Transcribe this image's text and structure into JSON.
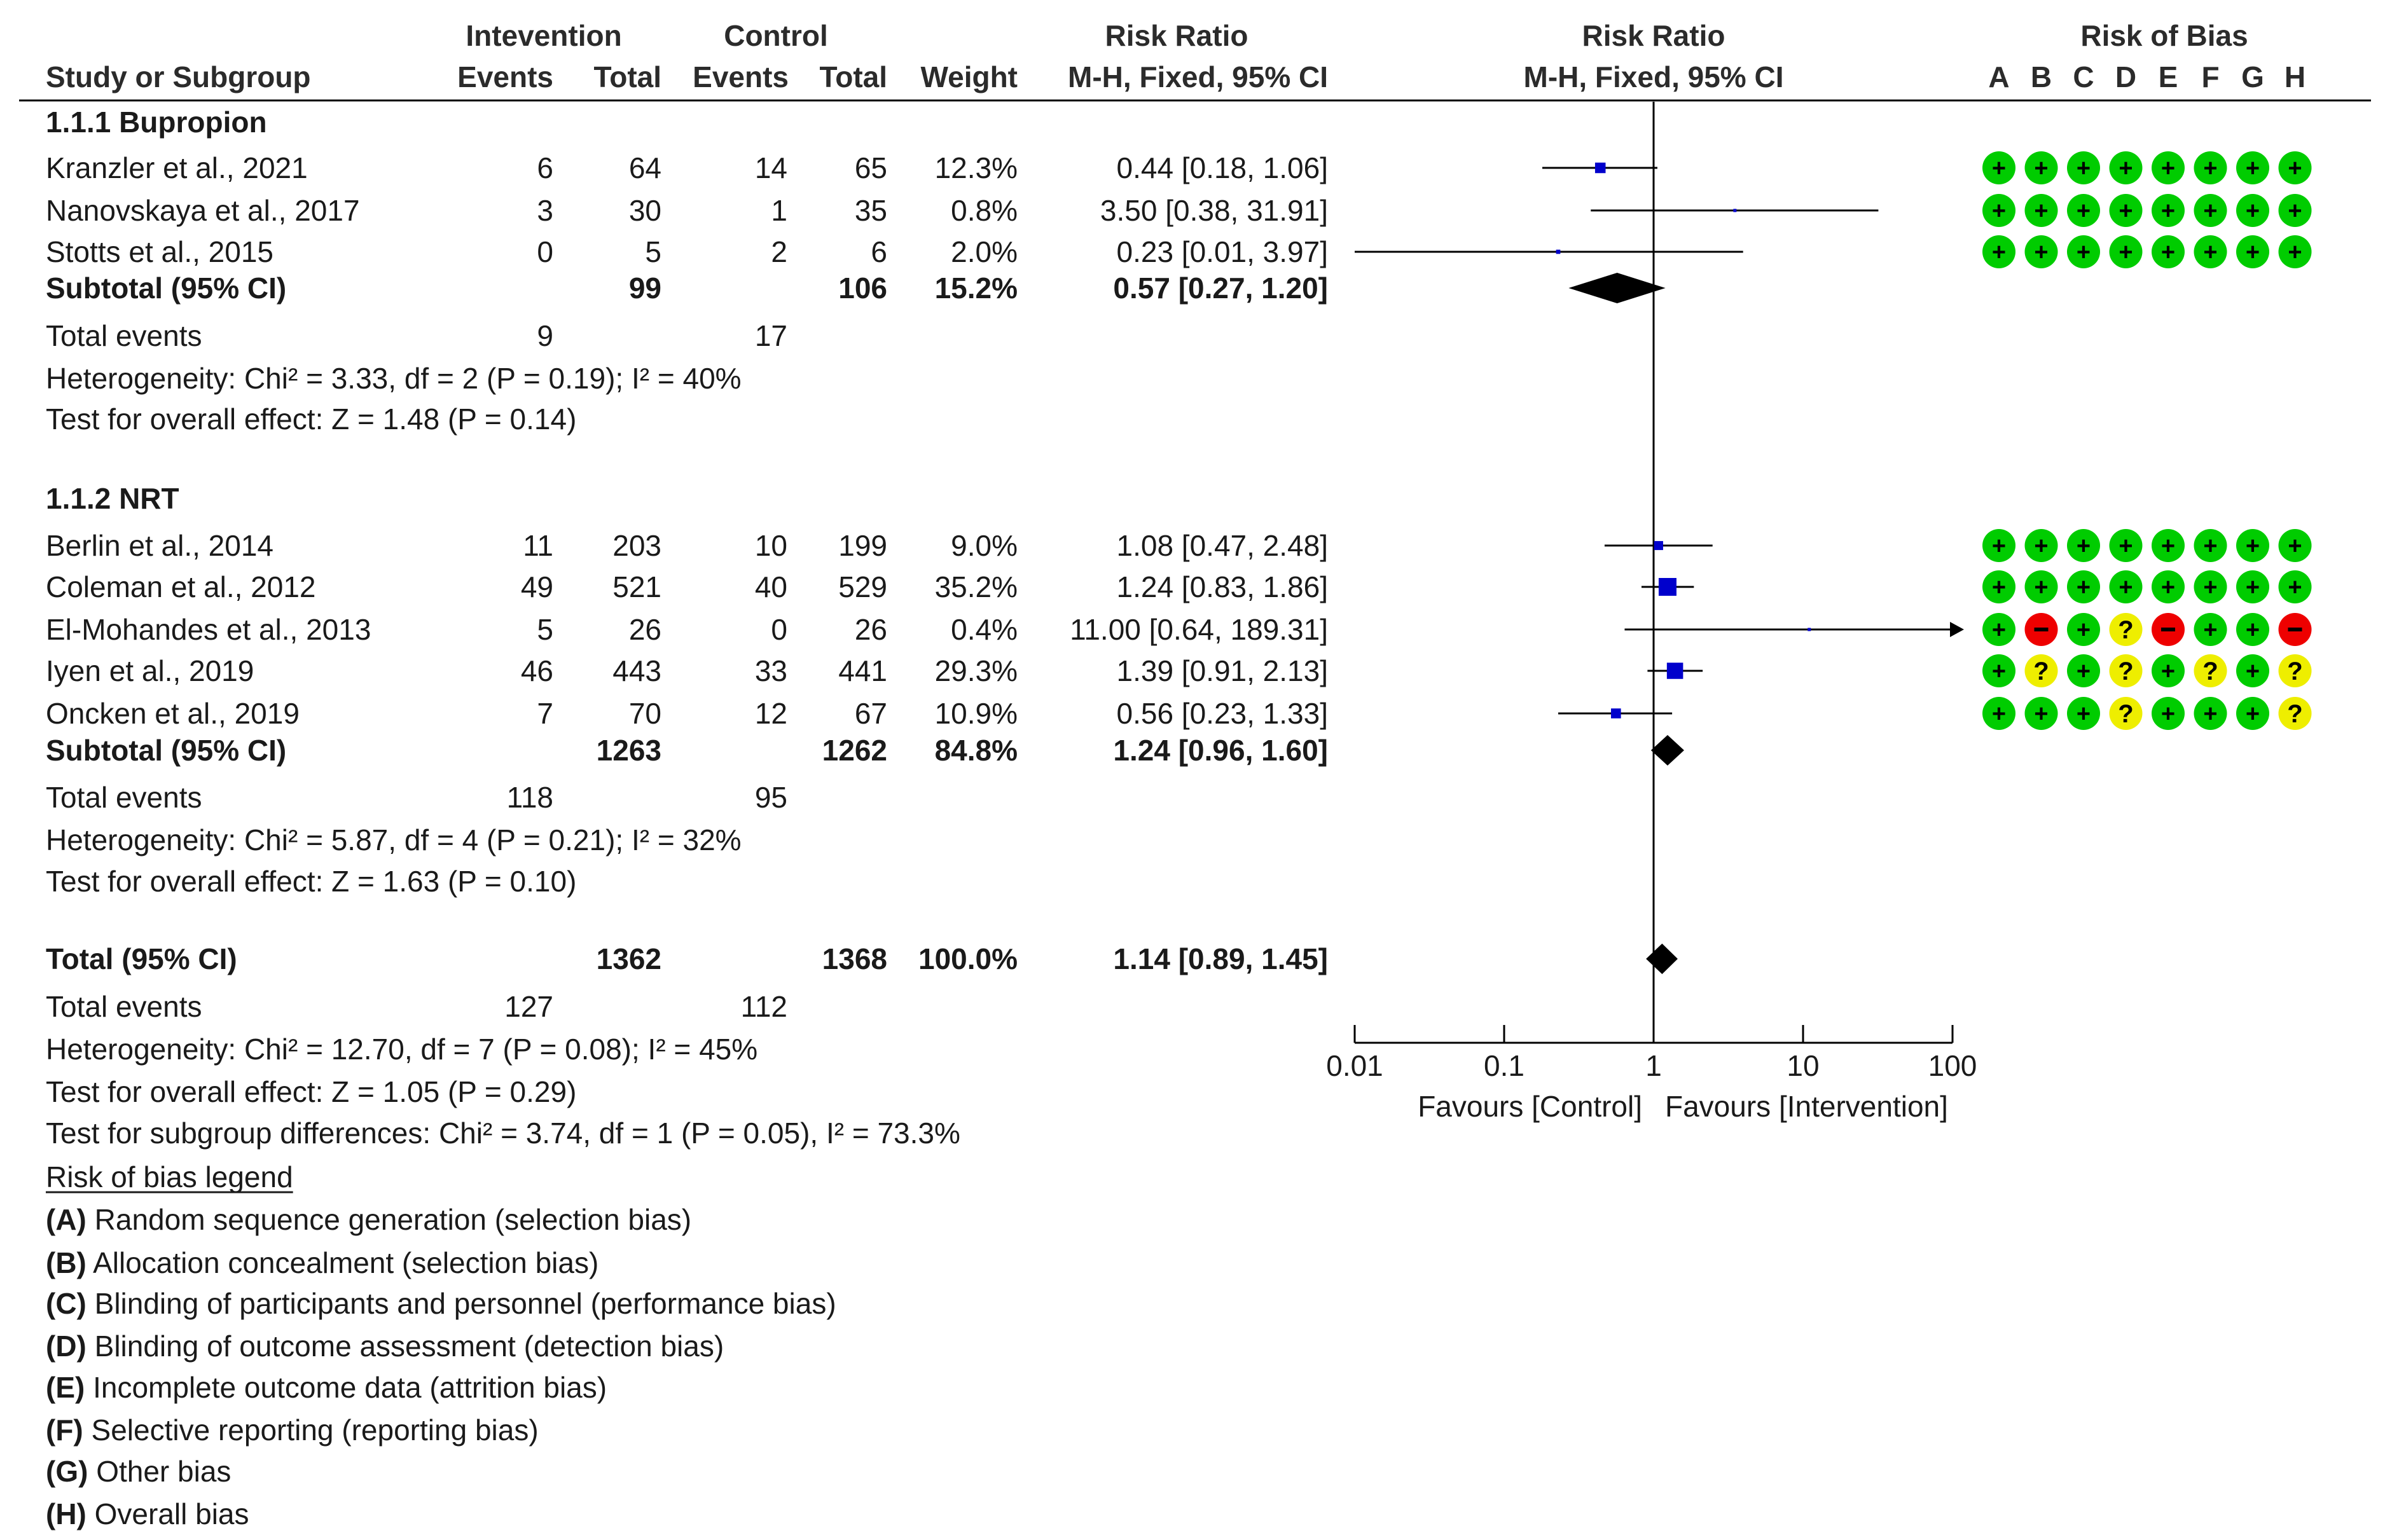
{
  "header": {
    "study_col": "Study or Subgroup",
    "intervention_group": "Intevention",
    "control_group": "Control",
    "events": "Events",
    "total": "Total",
    "weight": "Weight",
    "rr_title": "Risk Ratio",
    "rr_method": "M-H, Fixed, 95% CI",
    "plot_title": "Risk Ratio",
    "plot_method": "M-H, Fixed, 95% CI",
    "rob_title": "Risk of Bias",
    "rob_letters": [
      "A",
      "B",
      "C",
      "D",
      "E",
      "F",
      "G",
      "H"
    ]
  },
  "subgroups": [
    {
      "title": "1.1.1 Bupropion",
      "studies": [
        {
          "name": "Kranzler et al., 2021",
          "ie": "6",
          "it": "64",
          "ce": "14",
          "ct": "65",
          "weight": "12.3%",
          "rr_text": "0.44 [0.18, 1.06]",
          "rr": 0.44,
          "lo": 0.18,
          "hi": 1.06,
          "w": 12.3,
          "rob": [
            "+",
            "+",
            "+",
            "+",
            "+",
            "+",
            "+",
            "+"
          ]
        },
        {
          "name": "Nanovskaya et al., 2017",
          "ie": "3",
          "it": "30",
          "ce": "1",
          "ct": "35",
          "weight": "0.8%",
          "rr_text": "3.50 [0.38, 31.91]",
          "rr": 3.5,
          "lo": 0.38,
          "hi": 31.91,
          "w": 0.8,
          "rob": [
            "+",
            "+",
            "+",
            "+",
            "+",
            "+",
            "+",
            "+"
          ]
        },
        {
          "name": "Stotts et al., 2015",
          "ie": "0",
          "it": "5",
          "ce": "2",
          "ct": "6",
          "weight": "2.0%",
          "rr_text": "0.23 [0.01, 3.97]",
          "rr": 0.23,
          "lo": 0.01,
          "hi": 3.97,
          "w": 2.0,
          "rob": [
            "+",
            "+",
            "+",
            "+",
            "+",
            "+",
            "+",
            "+"
          ]
        }
      ],
      "subtotal": {
        "label": "Subtotal (95% CI)",
        "it": "99",
        "ct": "106",
        "weight": "15.2%",
        "rr_text": "0.57 [0.27, 1.20]",
        "rr": 0.57,
        "lo": 0.27,
        "hi": 1.2
      },
      "total_events": {
        "label": "Total events",
        "ie": "9",
        "ce": "17"
      },
      "heterogeneity": "Heterogeneity: Chi² = 3.33, df = 2 (P = 0.19); I² = 40%",
      "overall": "Test for overall effect: Z = 1.48 (P = 0.14)"
    },
    {
      "title": "1.1.2 NRT",
      "studies": [
        {
          "name": "Berlin et al., 2014",
          "ie": "11",
          "it": "203",
          "ce": "10",
          "ct": "199",
          "weight": "9.0%",
          "rr_text": "1.08 [0.47, 2.48]",
          "rr": 1.08,
          "lo": 0.47,
          "hi": 2.48,
          "w": 9.0,
          "rob": [
            "+",
            "+",
            "+",
            "+",
            "+",
            "+",
            "+",
            "+"
          ]
        },
        {
          "name": "Coleman et al., 2012",
          "ie": "49",
          "it": "521",
          "ce": "40",
          "ct": "529",
          "weight": "35.2%",
          "rr_text": "1.24 [0.83, 1.86]",
          "rr": 1.24,
          "lo": 0.83,
          "hi": 1.86,
          "w": 35.2,
          "rob": [
            "+",
            "+",
            "+",
            "+",
            "+",
            "+",
            "+",
            "+"
          ]
        },
        {
          "name": "El-Mohandes et al., 2013",
          "ie": "5",
          "it": "26",
          "ce": "0",
          "ct": "26",
          "weight": "0.4%",
          "rr_text": "11.00 [0.64, 189.31]",
          "rr": 11.0,
          "lo": 0.64,
          "hi": 189.31,
          "w": 0.4,
          "rob": [
            "+",
            "-",
            "+",
            "?",
            "-",
            "+",
            "+",
            "-"
          ]
        },
        {
          "name": "Iyen et al., 2019",
          "ie": "46",
          "it": "443",
          "ce": "33",
          "ct": "441",
          "weight": "29.3%",
          "rr_text": "1.39 [0.91, 2.13]",
          "rr": 1.39,
          "lo": 0.91,
          "hi": 2.13,
          "w": 29.3,
          "rob": [
            "+",
            "?",
            "+",
            "?",
            "+",
            "?",
            "+",
            "?"
          ]
        },
        {
          "name": "Oncken et al., 2019",
          "ie": "7",
          "it": "70",
          "ce": "12",
          "ct": "67",
          "weight": "10.9%",
          "rr_text": "0.56 [0.23, 1.33]",
          "rr": 0.56,
          "lo": 0.23,
          "hi": 1.33,
          "w": 10.9,
          "rob": [
            "+",
            "+",
            "+",
            "?",
            "+",
            "+",
            "+",
            "?"
          ]
        }
      ],
      "subtotal": {
        "label": "Subtotal (95% CI)",
        "it": "1263",
        "ct": "1262",
        "weight": "84.8%",
        "rr_text": "1.24 [0.96, 1.60]",
        "rr": 1.24,
        "lo": 0.96,
        "hi": 1.6
      },
      "total_events": {
        "label": "Total events",
        "ie": "118",
        "ce": "95"
      },
      "heterogeneity": "Heterogeneity: Chi² = 5.87, df = 4 (P = 0.21); I² = 32%",
      "overall": "Test for overall effect: Z = 1.63 (P = 0.10)"
    }
  ],
  "total": {
    "label": "Total (95% CI)",
    "it": "1362",
    "ct": "1368",
    "weight": "100.0%",
    "rr_text": "1.14 [0.89, 1.45]",
    "rr": 1.14,
    "lo": 0.89,
    "hi": 1.45,
    "total_events": {
      "label": "Total events",
      "ie": "127",
      "ce": "112"
    },
    "heterogeneity": "Heterogeneity: Chi² = 12.70, df = 7 (P = 0.08); I² = 45%",
    "overall": "Test for overall effect: Z = 1.05 (P = 0.29)",
    "subgroup_diff": "Test for subgroup differences: Chi² = 3.74, df = 1 (P = 0.05), I² = 73.3%"
  },
  "legend": {
    "title": "Risk of bias legend",
    "items": [
      {
        "key": "(A)",
        "text": "Random sequence generation (selection bias)"
      },
      {
        "key": "(B)",
        "text": "Allocation concealment (selection bias)"
      },
      {
        "key": "(C)",
        "text": "Blinding of participants and personnel (performance bias)"
      },
      {
        "key": "(D)",
        "text": "Blinding of outcome assessment (detection bias)"
      },
      {
        "key": "(E)",
        "text": "Incomplete outcome data (attrition bias)"
      },
      {
        "key": "(F)",
        "text": "Selective reporting (reporting bias)"
      },
      {
        "key": "(G)",
        "text": "Other bias"
      },
      {
        "key": "(H)",
        "text": "Overall bias"
      }
    ]
  },
  "chart_data": {
    "type": "forest",
    "scale": "log",
    "xlim": [
      0.01,
      100
    ],
    "ticks": [
      0.01,
      0.1,
      1,
      10,
      100
    ],
    "tick_labels": [
      "0.01",
      "0.1",
      "1",
      "10",
      "100"
    ],
    "null_line": 1,
    "xlabel_left": "Favours [Control]",
    "xlabel_right": "Favours [Intervention]"
  },
  "colors": {
    "study_marker": "#0000cc",
    "diamond": "#000000",
    "low_risk": "#00cc00",
    "high_risk": "#ee0000",
    "unclear_risk": "#eeee00"
  }
}
